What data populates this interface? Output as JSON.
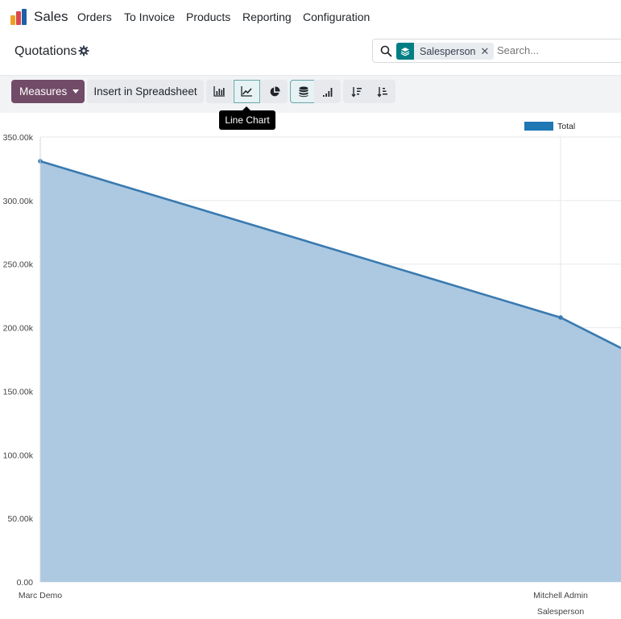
{
  "topnav": {
    "app_name": "Sales",
    "menu": [
      "Orders",
      "To Invoice",
      "Products",
      "Reporting",
      "Configuration"
    ]
  },
  "control_panel": {
    "title": "Quotations",
    "search": {
      "facet_label": "Salesperson",
      "placeholder": "Search..."
    }
  },
  "toolbar": {
    "measures_label": "Measures",
    "insert_spreadsheet_label": "Insert in Spreadsheet",
    "tooltip": "Line Chart",
    "buttons": [
      "bar-chart",
      "line-chart",
      "pie-chart",
      "stacked",
      "cumulative",
      "sort-descending",
      "sort-ascending"
    ]
  },
  "colors": {
    "brand": "#714b67",
    "accent": "#017e84",
    "series_line": "#3a7ab0",
    "series_fill": "#a8c6df",
    "legend": "#1f77b4"
  },
  "chart_data": {
    "type": "area",
    "categories": [
      "Marc Demo",
      "Mitchell Admin"
    ],
    "series": [
      {
        "name": "Total",
        "values": [
          331000,
          208000
        ]
      }
    ],
    "xlabel": "Salesperson",
    "ylabel": "",
    "ylim": [
      0,
      350000
    ],
    "yticks": [
      "0.00",
      "50.00k",
      "100.00k",
      "150.00k",
      "200.00k",
      "250.00k",
      "300.00k",
      "350.00k"
    ],
    "trailing_value": 184000,
    "grid": true,
    "legend": "top-right"
  }
}
